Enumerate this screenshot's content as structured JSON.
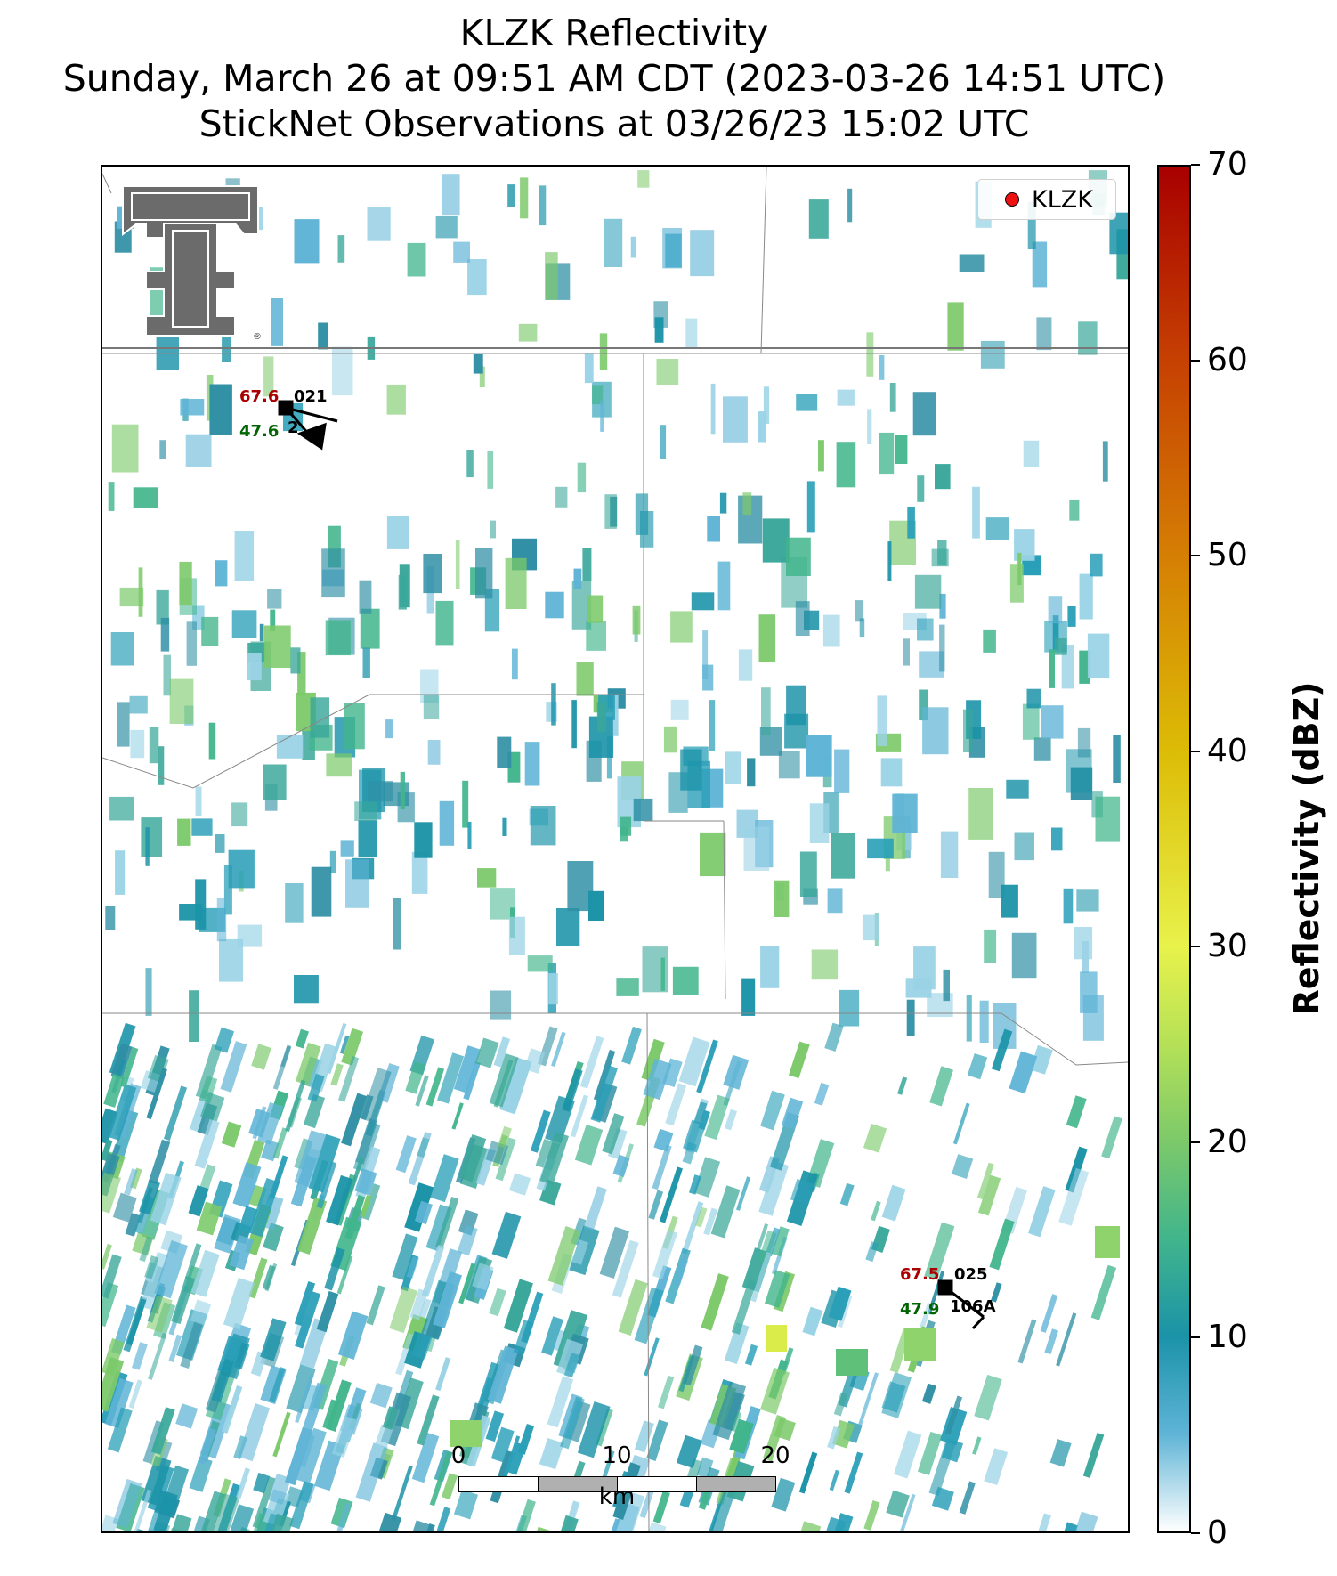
{
  "title": {
    "line1": "KLZK Reflectivity",
    "line2": "Sunday, March 26 at 09:51 AM CDT (2023-03-26 14:51 UTC)",
    "line3": "StickNet Observations at 03/26/23 15:02 UTC"
  },
  "legend": {
    "label": "KLZK",
    "marker_color": "#ee1111"
  },
  "logo": {
    "name": "double-t-logo",
    "mark": "®"
  },
  "stations": [
    {
      "id": "021",
      "temp": "67.6",
      "dew": "47.6",
      "obscured_id": "2"
    },
    {
      "id": "025",
      "temp": "67.5",
      "dew": "47.9",
      "obscured_id": "106A"
    }
  ],
  "scalebar": {
    "ticks": [
      "0",
      "10",
      "20"
    ],
    "unit": "km"
  },
  "colorbar": {
    "title": "Reflectivity (dBZ)",
    "ticks": [
      "0",
      "10",
      "20",
      "30",
      "40",
      "50",
      "60",
      "70"
    ],
    "range": [
      0,
      70
    ],
    "stops": [
      {
        "value": 0,
        "color": "#ffffff"
      },
      {
        "value": 5,
        "color": "#5fb4d6"
      },
      {
        "value": 10,
        "color": "#1b93a8"
      },
      {
        "value": 15,
        "color": "#41b58c"
      },
      {
        "value": 20,
        "color": "#7cc96a"
      },
      {
        "value": 25,
        "color": "#b5e157"
      },
      {
        "value": 30,
        "color": "#e8f24b"
      },
      {
        "value": 40,
        "color": "#dcbc06"
      },
      {
        "value": 50,
        "color": "#d57f04"
      },
      {
        "value": 60,
        "color": "#c64102"
      },
      {
        "value": 70,
        "color": "#a80000"
      }
    ]
  }
}
